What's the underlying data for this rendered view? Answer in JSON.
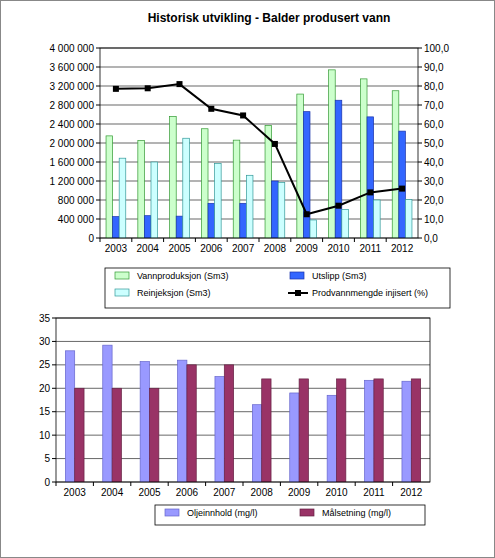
{
  "chart_data": [
    {
      "type": "bar",
      "title": "Historisk  utvikling - Balder produsert vann",
      "categories": [
        "2003",
        "2004",
        "2005",
        "2006",
        "2007",
        "2008",
        "2009",
        "2010",
        "2011",
        "2012"
      ],
      "series": [
        {
          "name": "Vannproduksjon (Sm3)",
          "color": "#ccffcc",
          "values": [
            2150000,
            2050000,
            2560000,
            2300000,
            2060000,
            2370000,
            3030000,
            3540000,
            3350000,
            3100000
          ]
        },
        {
          "name": "Utslipp (Sm3)",
          "color": "#3366ff",
          "values": [
            450000,
            470000,
            460000,
            730000,
            730000,
            1200000,
            2660000,
            2900000,
            2550000,
            2250000
          ]
        },
        {
          "name": "Reinjeksjon (Sm3)",
          "color": "#ccffff",
          "values": [
            1680000,
            1600000,
            2100000,
            1570000,
            1320000,
            1170000,
            380000,
            600000,
            800000,
            810000
          ]
        },
        {
          "name": "Prodvannmengde injisert (%)",
          "color": "#000000",
          "type": "line",
          "marker": "square",
          "axis": "y2",
          "values": [
            78.5,
            78.8,
            81,
            68,
            64.5,
            49.5,
            12.5,
            17,
            24,
            26
          ]
        }
      ],
      "ylim": [
        0,
        4000000
      ],
      "yticks": [
        0,
        {
          "value": 400000,
          "label": "400 000"
        },
        {
          "value": 800000,
          "label": "800 000"
        },
        {
          "value": 1200000,
          "label": "1 200 000"
        },
        {
          "value": 1600000,
          "label": "1 600 000"
        },
        {
          "value": 2000000,
          "label": "2 000 000"
        },
        {
          "value": 2400000,
          "label": "2 400 000"
        },
        {
          "value": 2800000,
          "label": "2 800 000"
        },
        {
          "value": 3200000,
          "label": "3 200 000"
        },
        {
          "value": 3600000,
          "label": "3 600 000"
        },
        {
          "value": 4000000,
          "label": "4 000 000"
        }
      ],
      "y2lim": [
        0,
        100
      ],
      "y2ticks": [
        {
          "value": 0,
          "label": "0,0"
        },
        {
          "value": 10,
          "label": "10,0"
        },
        {
          "value": 20,
          "label": "20,0"
        },
        {
          "value": 30,
          "label": "30,0"
        },
        {
          "value": 40,
          "label": "40,0"
        },
        {
          "value": 50,
          "label": "50,0"
        },
        {
          "value": 60,
          "label": "60,0"
        },
        {
          "value": 70,
          "label": "70,0"
        },
        {
          "value": 80,
          "label": "80,0"
        },
        {
          "value": 90,
          "label": "90,0"
        },
        {
          "value": 100,
          "label": "100,0"
        }
      ],
      "grid": true,
      "legend": "bottom"
    },
    {
      "type": "bar",
      "categories": [
        "2003",
        "2004",
        "2005",
        "2006",
        "2007",
        "2008",
        "2009",
        "2010",
        "2011",
        "2012"
      ],
      "series": [
        {
          "name": "Oljeinnhold (mg/l)",
          "color": "#9999ff",
          "values": [
            28,
            29.2,
            25.7,
            26,
            22.5,
            16.5,
            19,
            18.5,
            21.7,
            21.5
          ]
        },
        {
          "name": "Målsetning (mg/l)",
          "color": "#993366",
          "values": [
            20,
            20,
            20,
            25,
            25,
            22,
            22,
            22,
            22,
            22
          ]
        }
      ],
      "ylim": [
        0,
        35
      ],
      "yticks": [
        0,
        5,
        10,
        15,
        20,
        25,
        30,
        35
      ],
      "grid": true,
      "legend": "bottom"
    }
  ]
}
